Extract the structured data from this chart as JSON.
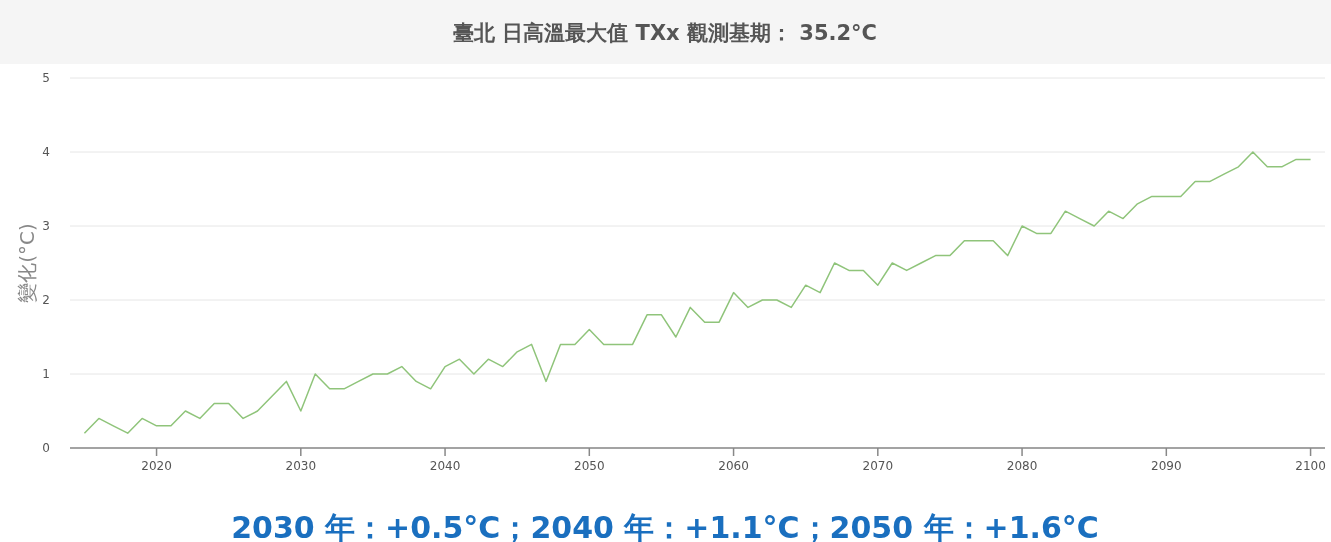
{
  "chart_data": {
    "type": "line",
    "title": "臺北  日高溫最大值 TXx  觀測基期： 35.2°C",
    "ylabel": "變化(°C)",
    "annotations": [
      "2030 年：+0.5°C；2040 年：+1.1°C；2050 年：+1.6°C"
    ],
    "x": [
      2015,
      2016,
      2017,
      2018,
      2019,
      2020,
      2021,
      2022,
      2023,
      2024,
      2025,
      2026,
      2027,
      2028,
      2029,
      2030,
      2031,
      2032,
      2033,
      2034,
      2035,
      2036,
      2037,
      2038,
      2039,
      2040,
      2041,
      2042,
      2043,
      2044,
      2045,
      2046,
      2047,
      2048,
      2049,
      2050,
      2051,
      2052,
      2053,
      2054,
      2055,
      2056,
      2057,
      2058,
      2059,
      2060,
      2061,
      2062,
      2063,
      2064,
      2065,
      2066,
      2067,
      2068,
      2069,
      2070,
      2071,
      2072,
      2073,
      2074,
      2075,
      2076,
      2077,
      2078,
      2079,
      2080,
      2081,
      2082,
      2083,
      2084,
      2085,
      2086,
      2087,
      2088,
      2089,
      2090,
      2091,
      2092,
      2093,
      2094,
      2095,
      2096,
      2097,
      2098,
      2099,
      2100
    ],
    "series": [
      {
        "color": "#8fc47a",
        "values": [
          0.2,
          0.4,
          0.3,
          0.2,
          0.4,
          0.3,
          0.3,
          0.5,
          0.4,
          0.6,
          0.6,
          0.4,
          0.5,
          0.7,
          0.9,
          0.5,
          1.0,
          0.8,
          0.8,
          0.9,
          1.0,
          1.0,
          1.1,
          0.9,
          0.8,
          1.1,
          1.2,
          1.0,
          1.2,
          1.1,
          1.3,
          1.4,
          0.9,
          1.4,
          1.4,
          1.6,
          1.4,
          1.4,
          1.4,
          1.8,
          1.8,
          1.5,
          1.9,
          1.7,
          1.7,
          2.1,
          1.9,
          2.0,
          2.0,
          1.9,
          2.2,
          2.1,
          2.5,
          2.4,
          2.4,
          2.2,
          2.5,
          2.4,
          2.5,
          2.6,
          2.6,
          2.8,
          2.8,
          2.8,
          2.6,
          3.0,
          2.9,
          2.9,
          3.2,
          3.1,
          3.0,
          3.2,
          3.1,
          3.3,
          3.4,
          3.4,
          3.4,
          3.6,
          3.6,
          3.7,
          3.8,
          4.0,
          3.8,
          3.8,
          3.9,
          3.9
        ]
      }
    ],
    "xlim": [
      2014,
      2101
    ],
    "xticks": [
      2020,
      2030,
      2040,
      2050,
      2060,
      2070,
      2080,
      2090,
      2100
    ],
    "ylim": [
      0,
      5
    ],
    "yticks": [
      0,
      1,
      2,
      3,
      4,
      5
    ],
    "grid": "y",
    "marker": "none"
  }
}
